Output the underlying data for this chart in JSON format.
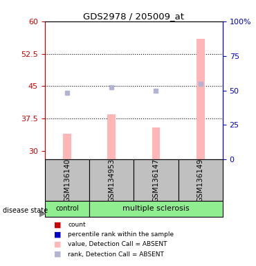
{
  "title": "GDS2978 / 205009_at",
  "samples": [
    "GSM136140",
    "GSM134953",
    "GSM136147",
    "GSM136149"
  ],
  "bar_values": [
    34.0,
    38.5,
    35.5,
    56.0
  ],
  "rank_values": [
    43.5,
    44.7,
    44.0,
    45.5
  ],
  "ylim_left": [
    28,
    60
  ],
  "ylim_right": [
    0,
    100
  ],
  "yticks_left": [
    30,
    37.5,
    45,
    52.5,
    60
  ],
  "ytick_labels_left": [
    "30",
    "37.5",
    "45",
    "52.5",
    "60"
  ],
  "yticks_right": [
    0,
    25,
    50,
    75,
    100
  ],
  "ytick_labels_right": [
    "0",
    "25",
    "50",
    "75",
    "100%"
  ],
  "bar_color": "#ffb6b6",
  "rank_color": "#b3b3d4",
  "grid_yticks": [
    37.5,
    45,
    52.5
  ],
  "legend_items": [
    {
      "label": "count",
      "color": "#cc0000"
    },
    {
      "label": "percentile rank within the sample",
      "color": "#0000cc"
    },
    {
      "label": "value, Detection Call = ABSENT",
      "color": "#ffb6b6"
    },
    {
      "label": "rank, Detection Call = ABSENT",
      "color": "#b3b3d4"
    }
  ],
  "control_color": "#90ee90",
  "ms_color": "#90ee90",
  "sample_box_color": "#c0c0c0",
  "left_tick_color": "#cc0000",
  "right_label_color": "#0000cc"
}
